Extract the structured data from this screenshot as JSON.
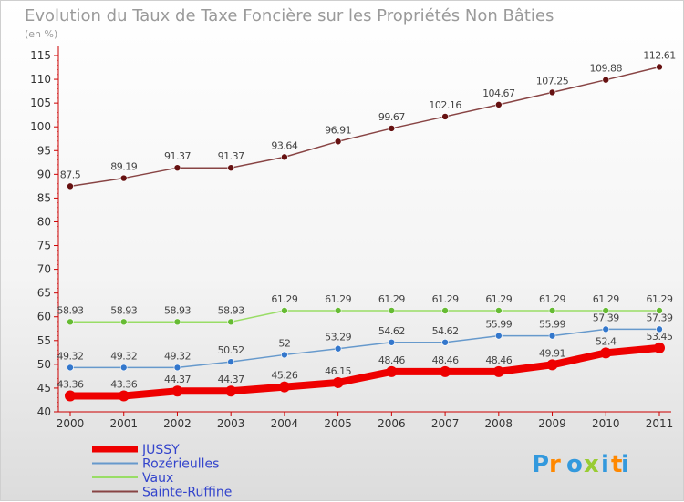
{
  "title": "Evolution du Taux de Taxe Foncière sur les Propriétés Non Bâties",
  "unit_label": "(en %)",
  "logo_text": "Proxiti",
  "colors": {
    "axis": "#cc0000",
    "grid": "#dddddd",
    "legend_text": "#3344cc"
  },
  "chart_data": {
    "type": "line",
    "title": "Evolution du Taux de Taxe Foncière sur les Propriétés Non Bâties",
    "ylabel": "(en %)",
    "xlabel": "",
    "x": [
      "2000",
      "2001",
      "2002",
      "2003",
      "2004",
      "2005",
      "2006",
      "2007",
      "2008",
      "2009",
      "2010",
      "2011"
    ],
    "ylim": [
      40,
      115
    ],
    "yticks": [
      40,
      45,
      50,
      55,
      60,
      65,
      70,
      75,
      80,
      85,
      90,
      95,
      100,
      105,
      110,
      115
    ],
    "grid": false,
    "legend_position": "bottom-left",
    "series": [
      {
        "name": "JUSSY",
        "color": "#ee0000",
        "width": 8,
        "values": [
          43.36,
          43.36,
          44.37,
          44.37,
          45.26,
          46.15,
          48.46,
          48.46,
          48.46,
          49.91,
          52.4,
          53.45
        ],
        "labels": [
          "43.36",
          "43.36",
          "44.37",
          "44.37",
          "45.26",
          "46.15",
          "48.46",
          "48.46",
          "48.46",
          "49.91",
          "52.4",
          "53.45"
        ]
      },
      {
        "name": "Rozérieulles",
        "color": "#6699cc",
        "point_color": "#3377cc",
        "width": 1.5,
        "values": [
          49.32,
          49.32,
          49.32,
          50.52,
          52,
          53.29,
          54.62,
          54.62,
          55.99,
          55.99,
          57.39,
          57.39
        ],
        "labels": [
          "49.32",
          "49.32",
          "49.32",
          "50.52",
          "52",
          "53.29",
          "54.62",
          "54.62",
          "55.99",
          "55.99",
          "57.39",
          "57.39"
        ]
      },
      {
        "name": "Vaux",
        "color": "#99dd66",
        "point_color": "#66bb33",
        "width": 1.5,
        "values": [
          58.93,
          58.93,
          58.93,
          58.93,
          61.29,
          61.29,
          61.29,
          61.29,
          61.29,
          61.29,
          61.29,
          61.29
        ],
        "labels": [
          "58.93",
          "58.93",
          "58.93",
          "58.93",
          "61.29",
          "61.29",
          "61.29",
          "61.29",
          "61.29",
          "61.29",
          "61.29",
          "61.29"
        ]
      },
      {
        "name": "Sainte-Ruffine",
        "color": "#884444",
        "point_color": "#661111",
        "width": 1.5,
        "values": [
          87.5,
          89.19,
          91.37,
          91.37,
          93.64,
          96.91,
          99.67,
          102.16,
          104.67,
          107.25,
          109.88,
          112.61
        ],
        "labels": [
          "87.5",
          "89.19",
          "91.37",
          "91.37",
          "93.64",
          "96.91",
          "99.67",
          "102.16",
          "104.67",
          "107.25",
          "109.88",
          "112.61"
        ]
      }
    ]
  }
}
